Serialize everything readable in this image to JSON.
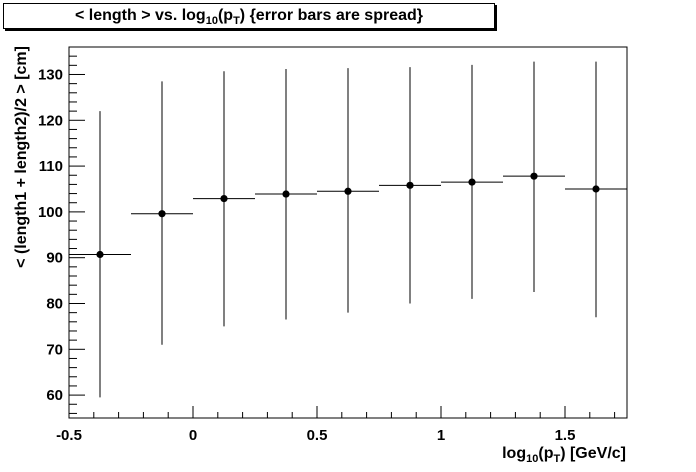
{
  "title": {
    "pre": "< length > vs. log",
    "sub10": "10",
    "mid": "(p",
    "subT": "T",
    "post": ")  {error bars are spread}"
  },
  "chart_data": {
    "type": "scatter",
    "title": "< length > vs. log10(pT)  {error bars are spread}",
    "xlabel": "log10(pT)  [GeV/c]",
    "ylabel": "< (length1 + length2)/2 >  [cm]",
    "xlim": [
      -0.5,
      1.75
    ],
    "ylim": [
      55,
      136
    ],
    "grid": false,
    "x_ticks": [
      -0.5,
      0,
      0.5,
      1,
      1.5
    ],
    "x_tick_labels": [
      "-0.5",
      "0",
      "0.5",
      "1",
      "1.5"
    ],
    "y_ticks": [
      60,
      70,
      80,
      90,
      100,
      110,
      120,
      130
    ],
    "y_tick_labels": [
      "60",
      "70",
      "80",
      "90",
      "100",
      "110",
      "120",
      "130"
    ],
    "points": [
      {
        "x": -0.375,
        "y": 90.7,
        "xerr": 0.125,
        "ylow": 59.5,
        "yhigh": 122.0
      },
      {
        "x": -0.125,
        "y": 99.6,
        "xerr": 0.125,
        "ylow": 71.0,
        "yhigh": 128.5
      },
      {
        "x": 0.125,
        "y": 102.9,
        "xerr": 0.125,
        "ylow": 75.0,
        "yhigh": 130.7
      },
      {
        "x": 0.375,
        "y": 103.9,
        "xerr": 0.125,
        "ylow": 76.5,
        "yhigh": 131.2
      },
      {
        "x": 0.625,
        "y": 104.5,
        "xerr": 0.125,
        "ylow": 78.0,
        "yhigh": 131.4
      },
      {
        "x": 0.875,
        "y": 105.8,
        "xerr": 0.125,
        "ylow": 80.0,
        "yhigh": 131.6
      },
      {
        "x": 1.125,
        "y": 106.5,
        "xerr": 0.125,
        "ylow": 81.0,
        "yhigh": 132.1
      },
      {
        "x": 1.375,
        "y": 107.8,
        "xerr": 0.125,
        "ylow": 82.5,
        "yhigh": 132.8
      },
      {
        "x": 1.625,
        "y": 105.0,
        "xerr": 0.125,
        "ylow": 77.0,
        "yhigh": 132.8
      }
    ]
  }
}
